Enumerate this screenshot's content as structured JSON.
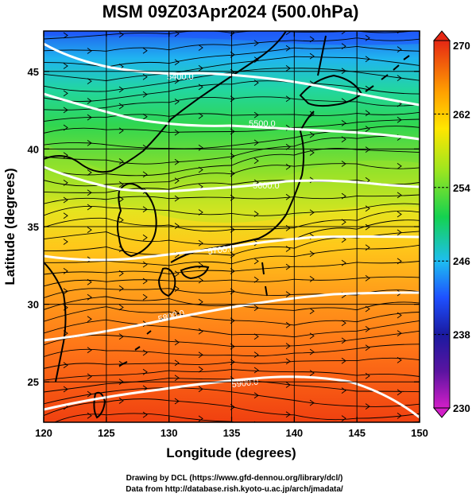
{
  "title": "MSM 09Z03Apr2024 (500.0hPa)",
  "xlabel": "Longitude (degrees)",
  "ylabel": "Latitude  (degrees)",
  "credit_line1": "Drawing by DCL (https://www.gfd-dennou.org/library/dcl/)",
  "credit_line2": "Data from http://database.rish.kyoto-u.ac.jp/arch/jmadata/",
  "map": {
    "lon_range": [
      120,
      150
    ],
    "lat_range": [
      22.4,
      47.6
    ],
    "lon_ticks": [
      "120",
      "125",
      "130",
      "135",
      "140",
      "145",
      "150"
    ],
    "lat_ticks": [
      "25",
      "30",
      "35",
      "40",
      "45"
    ],
    "grid": true
  },
  "colorbar": {
    "labels": [
      "270",
      "262",
      "254",
      "246",
      "238",
      "230"
    ],
    "min": 230,
    "max": 270,
    "colors": [
      "#d21ec8",
      "#1a1aa0",
      "#1e50ff",
      "#1ebef0",
      "#14d250",
      "#a0e61e",
      "#ffe600",
      "#ffa000",
      "#ff5000",
      "#e62814"
    ]
  },
  "contours": [
    {
      "label": "5400.0"
    },
    {
      "label": "5500.0"
    },
    {
      "label": "5600.0"
    },
    {
      "label": "5700.0"
    },
    {
      "label": "5800.0"
    },
    {
      "label": "5900.0"
    }
  ]
}
